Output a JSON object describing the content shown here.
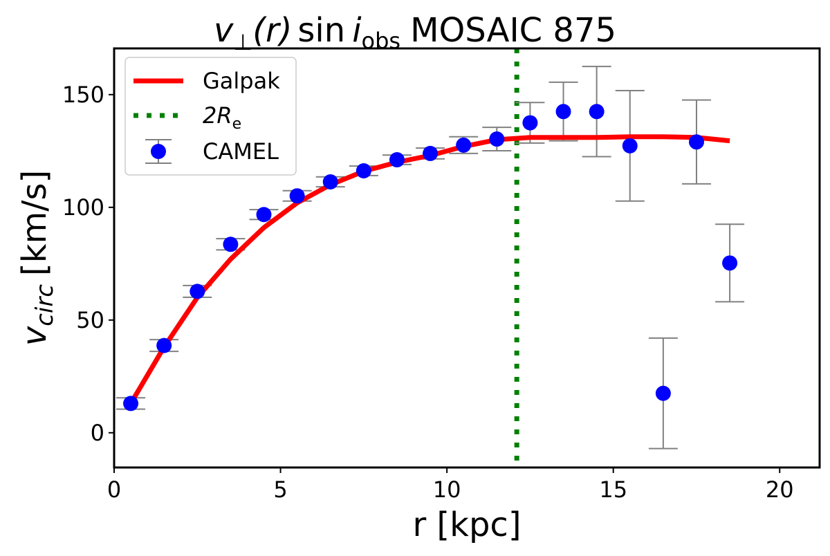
{
  "chart_data": {
    "type": "scatter",
    "title": {
      "v": "v",
      "perp": "⊥",
      "r": "(r)",
      "sin": "sin",
      "i": "i",
      "obs": "obs",
      "rest": "MOSAIC 875"
    },
    "xlabel": "r [kpc]",
    "ylabel": {
      "v": "v",
      "sub": "circ",
      "unit": "[km/s]"
    },
    "xlim": [
      0,
      21.2
    ],
    "ylim": [
      -15.4,
      170.5
    ],
    "xticks": [
      0,
      5,
      10,
      15,
      20
    ],
    "yticks": [
      0,
      50,
      100,
      150
    ],
    "grid": false,
    "legend_position": "top-left",
    "legend": [
      {
        "label": "Galpak",
        "type": "line",
        "color": "#ff0000"
      },
      {
        "label": "2R",
        "sub": "e",
        "type": "dotted-line",
        "color": "#008000"
      },
      {
        "label": "CAMEL",
        "type": "errorbar-point",
        "color": "#0000ff"
      }
    ],
    "series": [
      {
        "name": "Galpak",
        "type": "line",
        "color": "#ff0000",
        "x": [
          0.5,
          1.5,
          2.5,
          3.5,
          4.5,
          5.5,
          6.5,
          7.5,
          8.5,
          9.5,
          10.5,
          11.5,
          12.5,
          13.5,
          14.5,
          15.5,
          16.5,
          17.5,
          18.5
        ],
        "y": [
          13,
          38,
          60,
          77,
          91,
          102,
          110,
          116,
          120,
          123,
          127,
          130,
          131,
          131,
          131,
          131.3,
          131.3,
          131,
          129.5
        ]
      },
      {
        "name": "CAMEL",
        "type": "errorbar",
        "color": "#0000ff",
        "errorbar_color": "#808080",
        "x": [
          0.5,
          1.5,
          2.5,
          3.5,
          4.5,
          5.5,
          6.5,
          7.5,
          8.5,
          9.5,
          10.5,
          11.5,
          12.5,
          13.5,
          14.5,
          15.5,
          16.5,
          17.5,
          18.5
        ],
        "y": [
          13,
          38.7,
          62.7,
          83.6,
          96.8,
          105.1,
          111.3,
          116.2,
          121.1,
          123.9,
          127.6,
          130.3,
          137.5,
          142.5,
          142.5,
          127.3,
          17.5,
          129,
          75.3
        ],
        "yerr": [
          2.5,
          2.6,
          2.6,
          2.5,
          2.2,
          2.3,
          2.2,
          2.1,
          2.1,
          2.4,
          3.7,
          5.2,
          9,
          13,
          20,
          24.5,
          24.5,
          18.6,
          17.2
        ]
      },
      {
        "name": "2Re",
        "type": "vline",
        "color": "#008000",
        "x": 12.1
      }
    ]
  }
}
